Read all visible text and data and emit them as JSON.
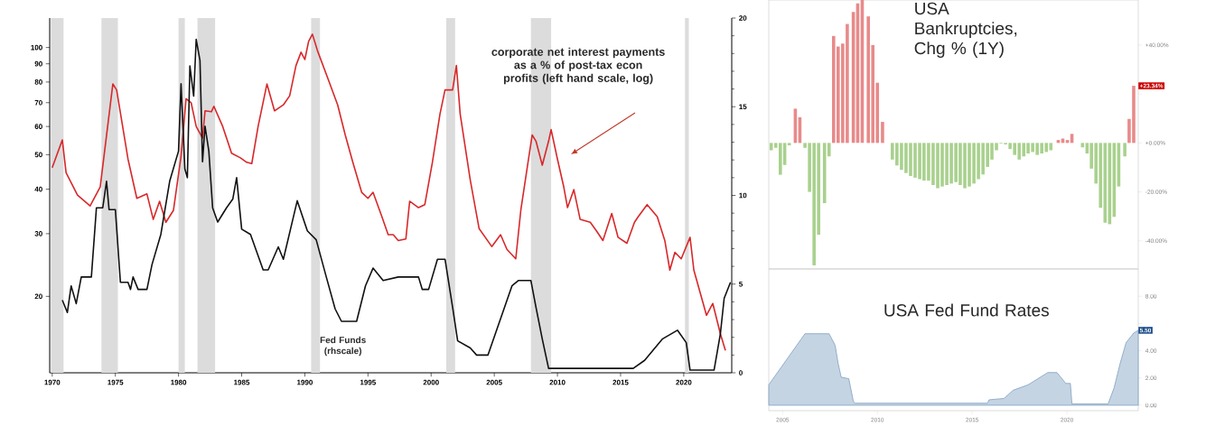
{
  "chart_data": [
    {
      "type": "line",
      "log": "y",
      "xlim": [
        1969.8,
        2023.8
      ],
      "xticks": [
        1970,
        1975,
        1980,
        1985,
        1990,
        1995,
        2000,
        2005,
        2010,
        2015,
        2020
      ],
      "ylim": [
        12.2,
        121
      ],
      "yticks": [
        20,
        30,
        40,
        50,
        60,
        70,
        80,
        90,
        100
      ],
      "y2lim": [
        0,
        20
      ],
      "y2ticks": [
        0,
        5,
        10,
        15,
        20
      ],
      "bands": [
        {
          "axis": "x",
          "from": 1969.9,
          "to": 1970.9,
          "color": "#dcdcdc"
        },
        {
          "axis": "x",
          "from": 1973.9,
          "to": 1975.2,
          "color": "#dcdcdc"
        },
        {
          "axis": "x",
          "from": 1980.0,
          "to": 1980.5,
          "color": "#dcdcdc"
        },
        {
          "axis": "x",
          "from": 1981.5,
          "to": 1982.9,
          "color": "#dcdcdc"
        },
        {
          "axis": "x",
          "from": 1990.5,
          "to": 1991.2,
          "color": "#dcdcdc"
        },
        {
          "axis": "x",
          "from": 2001.2,
          "to": 2001.9,
          "color": "#dcdcdc"
        },
        {
          "axis": "x",
          "from": 2007.9,
          "to": 2009.5,
          "color": "#dcdcdc"
        },
        {
          "axis": "x",
          "from": 2020.1,
          "to": 2020.4,
          "color": "#dcdcdc"
        }
      ],
      "series": [
        {
          "name": "corporate net interest payments as a % of post-tax econ profits (left hand scale, log)",
          "color": "#d8282a",
          "x": [
            1970.0,
            1970.8,
            1971.1,
            1972.0,
            1973.0,
            1973.8,
            1974.8,
            1975.1,
            1976.0,
            1976.7,
            1977.5,
            1978.0,
            1978.5,
            1979.0,
            1979.6,
            1980.2,
            1980.6,
            1981.0,
            1981.4,
            1981.9,
            1982.1,
            1982.6,
            1982.8,
            1983.5,
            1984.2,
            1984.9,
            1985.4,
            1985.8,
            1986.3,
            1987.0,
            1987.6,
            1988.3,
            1988.8,
            1989.3,
            1989.7,
            1990.0,
            1990.3,
            1990.6,
            1991.0,
            1991.8,
            1992.6,
            1993.2,
            1993.8,
            1994.5,
            1995.0,
            1995.4,
            1996.1,
            1996.6,
            1997.0,
            1997.4,
            1998.0,
            1998.3,
            1999.0,
            1999.5,
            2000.1,
            2000.7,
            2001.1,
            2001.7,
            2002.0,
            2002.3,
            2003.1,
            2003.8,
            2004.8,
            2005.5,
            2006.0,
            2006.7,
            2007.1,
            2007.6,
            2008.0,
            2008.3,
            2008.8,
            2009.3,
            2009.5,
            2010.0,
            2010.5,
            2010.8,
            2011.3,
            2011.8,
            2012.6,
            2013.1,
            2013.6,
            2014.3,
            2014.8,
            2015.5,
            2016.1,
            2016.4,
            2017.1,
            2017.9,
            2018.5,
            2018.9,
            2019.3,
            2019.8,
            2020.5,
            2020.8,
            2021.2,
            2021.8,
            2022.3,
            2022.9,
            2023.3
          ],
          "values": [
            46,
            55,
            44.5,
            38.5,
            35.9,
            40.6,
            79,
            76,
            48.6,
            37.7,
            38.8,
            32.9,
            37,
            32.3,
            34.9,
            49.5,
            71.8,
            70,
            60,
            55.7,
            66.4,
            66,
            68.4,
            60,
            50.5,
            49,
            47.6,
            47.2,
            60,
            79,
            66.4,
            69,
            73.2,
            89,
            97,
            92.5,
            104,
            109,
            98,
            82.3,
            69,
            56.8,
            47.6,
            39.2,
            37.7,
            39.2,
            33.5,
            29.8,
            29.8,
            28.7,
            29,
            37,
            35.5,
            36.2,
            47.6,
            65,
            76,
            76,
            89,
            65,
            42.4,
            31,
            27.6,
            29.8,
            27.1,
            25.5,
            34.9,
            45.8,
            56.8,
            54.6,
            46.7,
            54.6,
            58.8,
            48.6,
            40.6,
            35.5,
            39.9,
            32.9,
            32.3,
            30.5,
            28.7,
            34.2,
            29.3,
            28.2,
            32.3,
            33.5,
            36.2,
            33.5,
            28.7,
            23.7,
            26.6,
            25.5,
            29.3,
            23.7,
            21.1,
            17.7,
            19.1,
            15.7,
            14.1
          ]
        },
        {
          "name": "Fed Funds (rhscale)",
          "color": "#111111",
          "axis": "y2",
          "x": [
            1970.8,
            1971.2,
            1971.5,
            1971.9,
            1972.3,
            1973.1,
            1973.5,
            1974.0,
            1974.3,
            1974.5,
            1975.0,
            1975.4,
            1976.0,
            1976.2,
            1976.4,
            1976.8,
            1977.5,
            1977.9,
            1978.6,
            1979.3,
            1980.0,
            1980.2,
            1980.5,
            1980.7,
            1980.9,
            1981.2,
            1981.4,
            1981.7,
            1981.9,
            1982.1,
            1982.4,
            1982.7,
            1983.1,
            1983.8,
            1984.3,
            1984.6,
            1985.0,
            1985.7,
            1986.7,
            1987.1,
            1987.9,
            1988.3,
            1989.4,
            1990.2,
            1990.9,
            1991.7,
            1992.4,
            1992.9,
            1994.1,
            1994.8,
            1995.4,
            1996.2,
            1997.4,
            1999.0,
            1999.3,
            1999.8,
            2000.5,
            2001.1,
            2001.7,
            2002.1,
            2003.1,
            2003.6,
            2004.5,
            2006.4,
            2006.9,
            2007.9,
            2008.3,
            2008.8,
            2009.3,
            2016.0,
            2016.9,
            2018.3,
            2019.5,
            2020.2,
            2020.5,
            2022.4,
            2022.9,
            2023.2,
            2023.7
          ],
          "values": [
            4.1,
            3.4,
            4.9,
            3.9,
            5.4,
            5.4,
            9.3,
            9.3,
            10.8,
            9.2,
            9.2,
            5.1,
            5.1,
            4.7,
            5.4,
            4.7,
            4.7,
            6.1,
            7.8,
            10.8,
            12.5,
            16.3,
            11.5,
            11.0,
            17.3,
            15.6,
            18.8,
            17.6,
            11.9,
            13.9,
            12.5,
            9.3,
            8.5,
            9.3,
            9.8,
            11.0,
            8.1,
            7.8,
            5.8,
            5.8,
            7.1,
            6.4,
            9.7,
            8.0,
            7.5,
            5.4,
            3.6,
            2.9,
            2.9,
            4.9,
            5.9,
            5.2,
            5.4,
            5.4,
            4.7,
            4.7,
            6.4,
            6.4,
            3.7,
            1.8,
            1.4,
            1.0,
            1.0,
            4.9,
            5.2,
            5.2,
            3.7,
            1.9,
            0.25,
            0.25,
            0.7,
            1.9,
            2.4,
            1.7,
            0.15,
            0.15,
            2.2,
            4.2,
            5.1
          ]
        }
      ]
    },
    {
      "type": "bar",
      "title": "USA Bankruptcies, Chg % (1Y)",
      "tick_labels": "y",
      "xlim": [
        2004.27,
        2023.76
      ],
      "ylim": [
        -51.5,
        58.4
      ],
      "yticks": [
        {
          "value": -40,
          "label": "-40.00%"
        },
        {
          "value": -20,
          "label": "-20.00%"
        },
        {
          "value": 0,
          "label": "+0.00%"
        },
        {
          "value": 20,
          "label": null
        },
        {
          "value": 40,
          "label": "+40.00%"
        }
      ],
      "x": [
        2004.4,
        2004.64,
        2004.88,
        2005.11,
        2005.35,
        2005.67,
        2005.91,
        2006.18,
        2006.42,
        2006.66,
        2006.9,
        2007.21,
        2007.45,
        2007.69,
        2007.93,
        2008.17,
        2008.41,
        2008.73,
        2008.96,
        2009.2,
        2009.52,
        2009.76,
        2010.0,
        2010.27,
        2010.79,
        2011.03,
        2011.27,
        2011.51,
        2011.75,
        2011.99,
        2012.23,
        2012.46,
        2012.7,
        2012.94,
        2013.18,
        2013.42,
        2013.66,
        2013.9,
        2014.14,
        2014.37,
        2014.61,
        2014.85,
        2015.09,
        2015.33,
        2015.57,
        2015.81,
        2016.04,
        2016.28,
        2016.52,
        2016.76,
        2017.0,
        2017.24,
        2017.48,
        2017.72,
        2017.95,
        2018.19,
        2018.43,
        2018.67,
        2018.91,
        2019.15,
        2019.54,
        2019.78,
        2020.02,
        2020.26,
        2020.82,
        2021.06,
        2021.29,
        2021.53,
        2021.77,
        2022.01,
        2022.25,
        2022.49,
        2022.73,
        2023.05,
        2023.28,
        2023.52
      ],
      "values": [
        -3,
        -2,
        -13,
        -9,
        -1,
        14,
        10.5,
        -2,
        -20,
        -50,
        -37.5,
        -24.6,
        -5.5,
        43.7,
        39.4,
        40.6,
        48.6,
        53.5,
        57,
        58.4,
        51.7,
        40,
        24.6,
        8.6,
        -6.8,
        -9.2,
        -11,
        -12.3,
        -13.5,
        -14.2,
        -14.8,
        -15.4,
        -15.4,
        -17.2,
        -18.5,
        -17.8,
        -17.2,
        -16.6,
        -16,
        -17.2,
        -18.5,
        -17.8,
        -16.6,
        -14.8,
        -12.9,
        -9.8,
        -6.8,
        -3,
        -0.3,
        -0.6,
        -2.5,
        -4.9,
        -6.8,
        -5.5,
        -4.3,
        -3.7,
        -4.9,
        -4.3,
        -3.7,
        -3,
        1.2,
        1.8,
        1.2,
        3.7,
        -1.8,
        -4.3,
        -10.5,
        -16.6,
        -26.5,
        -32.6,
        -33.2,
        -30.2,
        -17.8,
        -5.5,
        9.8,
        23.34
      ],
      "colors": [
        "#a9d18e",
        "#a9d18e",
        "#a9d18e",
        "#a9d18e",
        "#a9d18e",
        "#e88a8a",
        "#e88a8a",
        "#a9d18e",
        "#a9d18e",
        "#a9d18e",
        "#a9d18e",
        "#a9d18e",
        "#a9d18e",
        "#e88a8a",
        "#e88a8a",
        "#e88a8a",
        "#e88a8a",
        "#e88a8a",
        "#e88a8a",
        "#e88a8a",
        "#e88a8a",
        "#e88a8a",
        "#e88a8a",
        "#e88a8a",
        "#a9d18e",
        "#a9d18e",
        "#a9d18e",
        "#a9d18e",
        "#a9d18e",
        "#a9d18e",
        "#a9d18e",
        "#a9d18e",
        "#a9d18e",
        "#a9d18e",
        "#a9d18e",
        "#a9d18e",
        "#a9d18e",
        "#a9d18e",
        "#a9d18e",
        "#a9d18e",
        "#a9d18e",
        "#a9d18e",
        "#a9d18e",
        "#a9d18e",
        "#a9d18e",
        "#a9d18e",
        "#a9d18e",
        "#a9d18e",
        "#a9d18e",
        "#a9d18e",
        "#a9d18e",
        "#a9d18e",
        "#a9d18e",
        "#a9d18e",
        "#a9d18e",
        "#a9d18e",
        "#a9d18e",
        "#a9d18e",
        "#a9d18e",
        "#a9d18e",
        "#e88a8a",
        "#e88a8a",
        "#e88a8a",
        "#e88a8a",
        "#a9d18e",
        "#a9d18e",
        "#a9d18e",
        "#a9d18e",
        "#a9d18e",
        "#a9d18e",
        "#a9d18e",
        "#a9d18e",
        "#a9d18e",
        "#a9d18e",
        "#e88a8a",
        "#e88a8a"
      ],
      "annotations": [
        "+23.34%"
      ]
    },
    {
      "type": "area",
      "title": "USA Fed Fund Rates",
      "color": "#7f9fc0",
      "xlim": [
        2004.27,
        2023.76
      ],
      "ylim": [
        -0.4,
        10
      ],
      "xticks": [
        2005,
        2010,
        2015,
        2020
      ],
      "yticks": [
        {
          "value": 0,
          "label": "0.00"
        },
        {
          "value": 2,
          "label": "2.00"
        },
        {
          "value": 4,
          "label": "4.00"
        },
        {
          "value": 6,
          "label": null
        },
        {
          "value": 8,
          "label": "8.00"
        }
      ],
      "x": [
        2004.27,
        2006.18,
        2007.45,
        2007.77,
        2007.93,
        2008.09,
        2008.49,
        2008.73,
        2008.81,
        2015.81,
        2015.89,
        2016.68,
        2017.16,
        2017.95,
        2018.99,
        2019.47,
        2019.94,
        2020.18,
        2020.26,
        2022.17,
        2022.49,
        2022.81,
        2023.12,
        2023.52,
        2023.76
      ],
      "values": [
        1.5,
        5.25,
        5.25,
        4.4,
        3.06,
        2.06,
        1.95,
        0.3,
        0.15,
        0.15,
        0.4,
        0.5,
        1.1,
        1.5,
        2.4,
        2.4,
        1.6,
        1.6,
        0.1,
        0.1,
        1.3,
        3.1,
        4.6,
        5.3,
        5.5
      ],
      "annotations": [
        "5.50"
      ]
    }
  ]
}
